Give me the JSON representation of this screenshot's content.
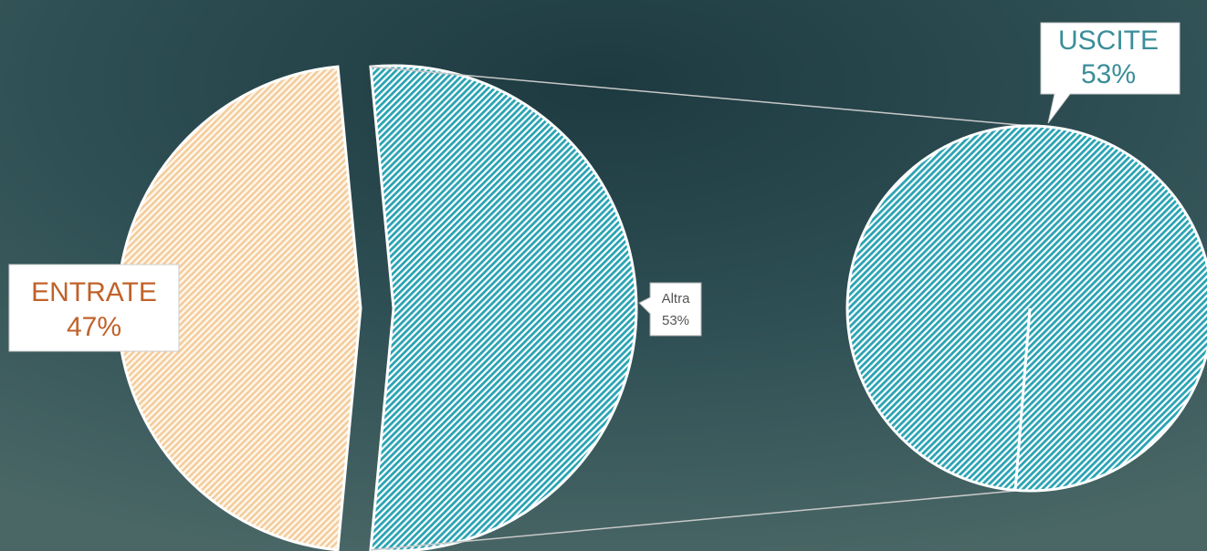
{
  "chart_data": {
    "type": "pie-of-pie",
    "categories": [
      "ENTRATE",
      "Altra"
    ],
    "values": [
      47,
      53
    ],
    "value_labels": [
      "47%",
      "53%"
    ],
    "colors": [
      "#f6d9b5",
      "#5fc3cf"
    ],
    "secondary": {
      "categories": [
        "USCITE"
      ],
      "values": [
        53
      ],
      "value_labels": [
        "53%"
      ],
      "colors": [
        "#5fc3cf"
      ]
    }
  }
}
